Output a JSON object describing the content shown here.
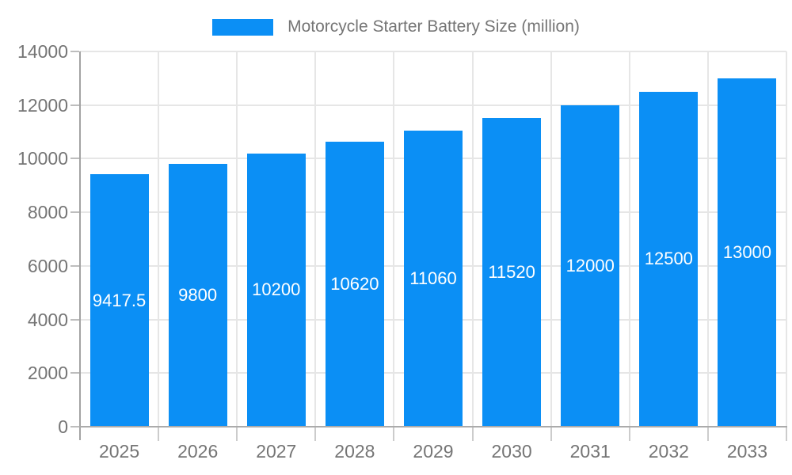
{
  "legend": {
    "label": "Motorcycle Starter Battery Size (million)",
    "swatch_color": "#0b8ff5"
  },
  "chart_data": {
    "type": "bar",
    "title": "Motorcycle Starter Battery Size (million)",
    "categories": [
      "2025",
      "2026",
      "2027",
      "2028",
      "2029",
      "2030",
      "2031",
      "2032",
      "2033"
    ],
    "values": [
      9417.5,
      9800,
      10200,
      10620,
      11060,
      11520,
      12000,
      12500,
      13000
    ],
    "bar_labels": [
      "9417.5",
      "9800",
      "10200",
      "10620",
      "11060",
      "11520",
      "12000",
      "12500",
      "13000"
    ],
    "xlabel": "",
    "ylabel": "",
    "ylim": [
      0,
      14000
    ],
    "yticks": [
      0,
      2000,
      4000,
      6000,
      8000,
      10000,
      12000,
      14000
    ],
    "grid": true,
    "legend_position": "top-center",
    "colors": {
      "bar": "#0b8ff5",
      "bar_label_text": "#ffffff",
      "axis_text": "#757575",
      "y_axis_line": "#a3a3a3",
      "x_axis_line": "#ababab",
      "gridline": "#e6e6e6",
      "tick": "#cccccc",
      "background": "#ffffff"
    }
  }
}
